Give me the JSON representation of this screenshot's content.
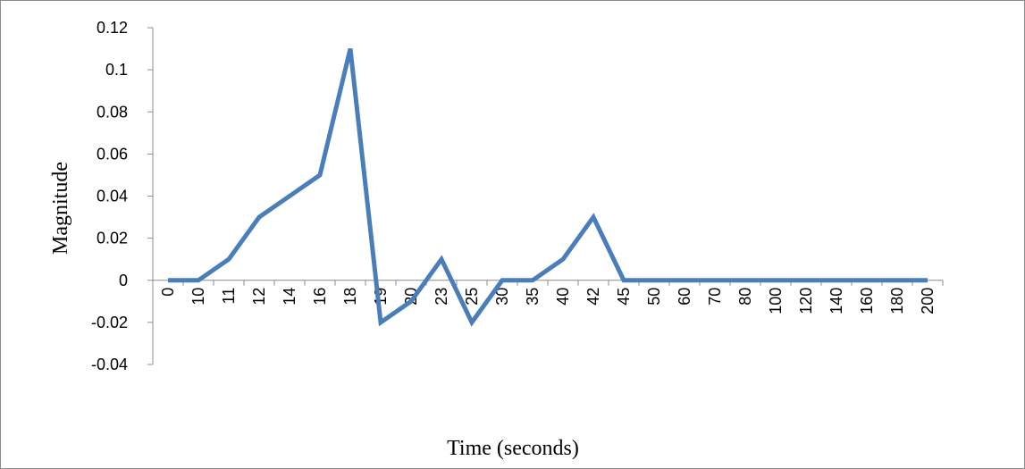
{
  "chart_data": {
    "type": "line",
    "title": "",
    "xlabel": "Time (seconds)",
    "ylabel": "Magnitude",
    "categories": [
      "0",
      "10",
      "11",
      "12",
      "14",
      "16",
      "18",
      "19",
      "20",
      "23",
      "25",
      "30",
      "35",
      "40",
      "42",
      "45",
      "50",
      "60",
      "70",
      "80",
      "100",
      "120",
      "140",
      "160",
      "180",
      "200"
    ],
    "series": [
      {
        "values": [
          0,
          0,
          0.01,
          0.03,
          0.04,
          0.05,
          0.11,
          -0.02,
          -0.01,
          0.01,
          -0.02,
          0,
          0,
          0.01,
          0.03,
          0,
          0,
          0,
          0,
          0,
          0,
          0,
          0,
          0,
          0,
          0
        ],
        "color": "#4a7ebb"
      }
    ],
    "ylim": [
      -0.04,
      0.12
    ],
    "yticks": [
      -0.04,
      -0.02,
      0,
      0.02,
      0.04,
      0.06,
      0.08,
      0.1,
      0.12
    ],
    "ytick_labels": [
      "-0.04",
      "-0.02",
      "0",
      "0.02",
      "0.04",
      "0.06",
      "0.08",
      "0.1",
      "0.12"
    ],
    "grid": false,
    "legend": "none"
  }
}
